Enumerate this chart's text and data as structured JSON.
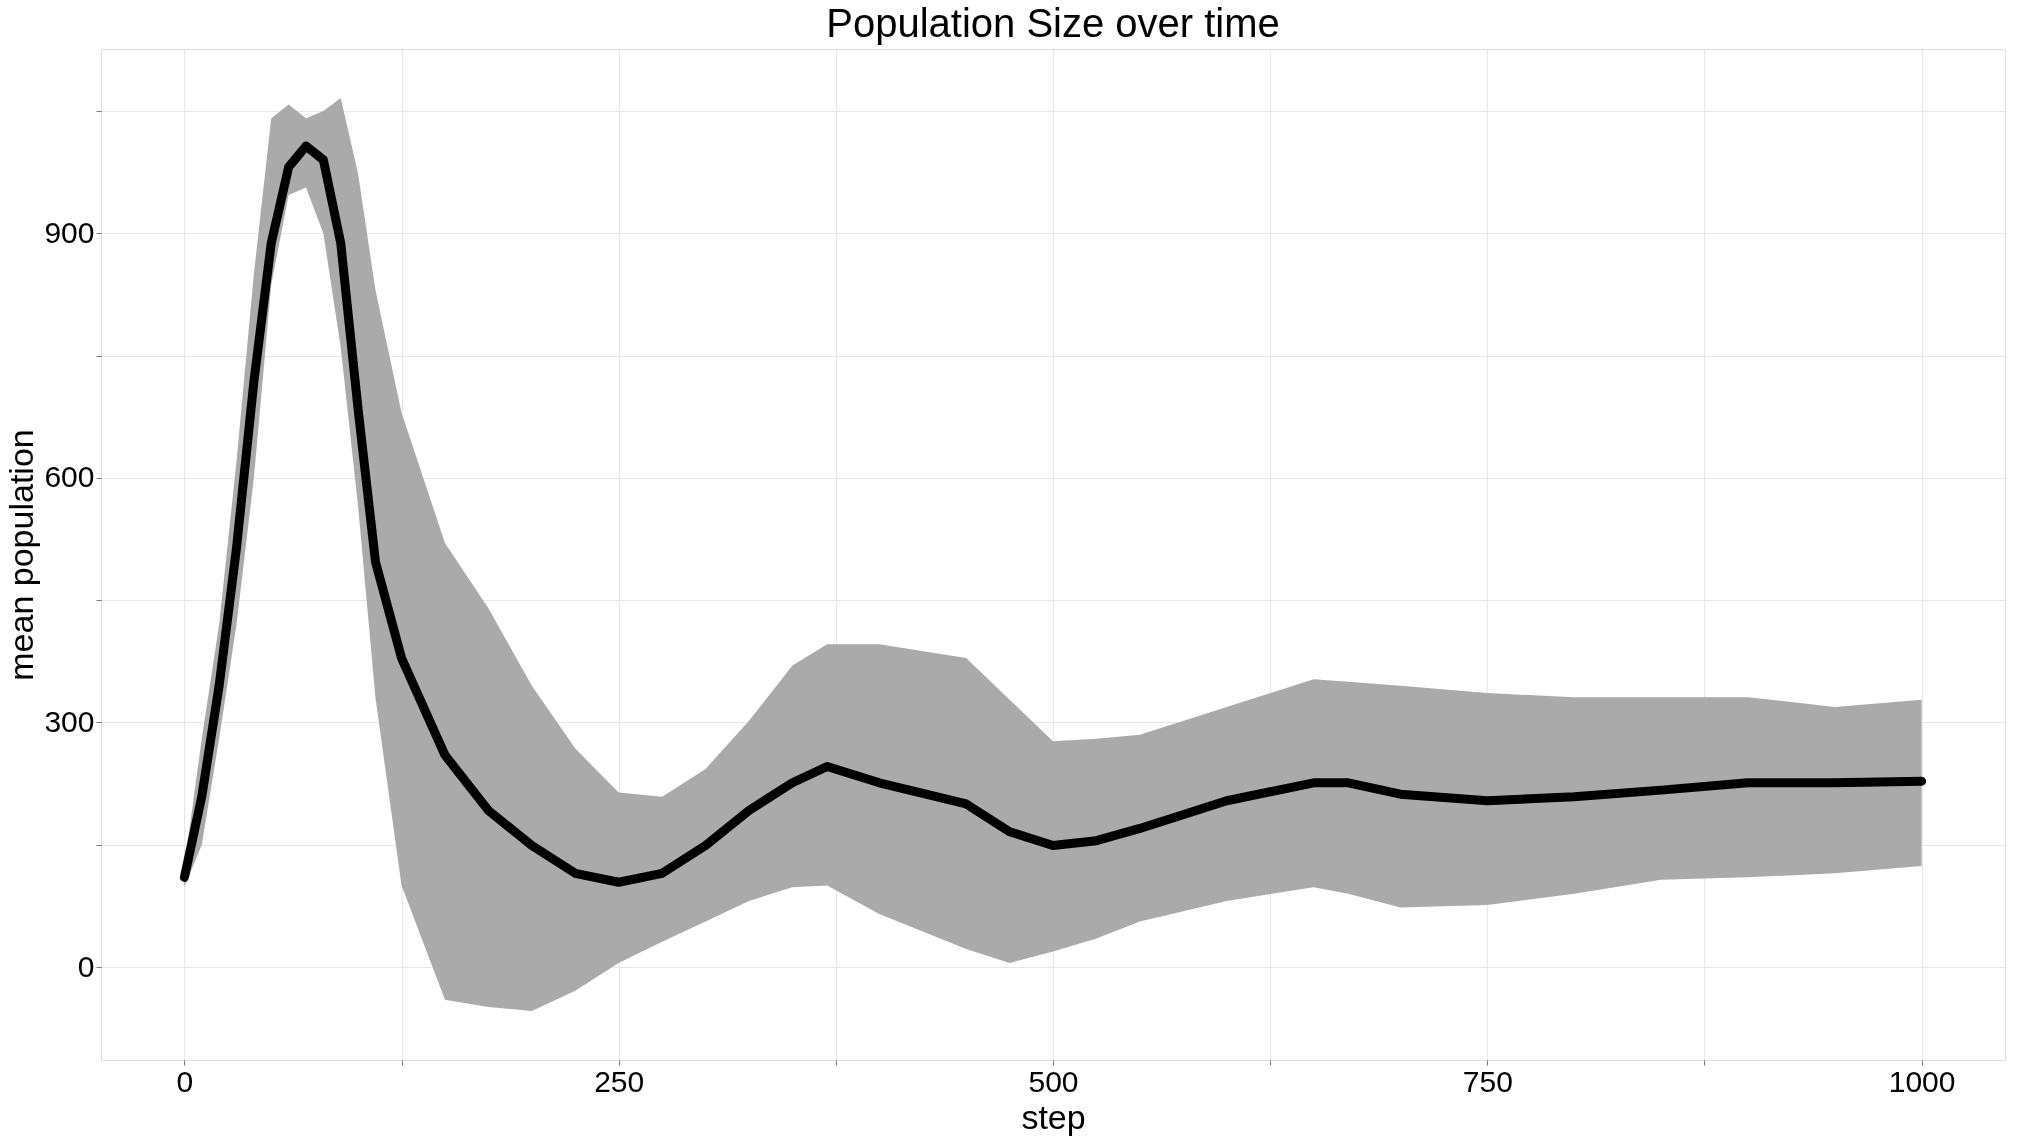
{
  "chart_data": {
    "type": "line",
    "title": "Population Size over time",
    "xlabel": "step",
    "ylabel": "mean population",
    "x": [
      0,
      10,
      20,
      30,
      40,
      50,
      60,
      70,
      80,
      90,
      100,
      110,
      125,
      150,
      175,
      200,
      225,
      250,
      275,
      300,
      325,
      350,
      370,
      400,
      450,
      475,
      500,
      525,
      550,
      600,
      650,
      670,
      700,
      750,
      800,
      850,
      900,
      950,
      1000
    ],
    "series": [
      {
        "color": "#000000",
        "values": [
          110,
          209,
          345,
          514,
          718,
          888,
          981,
          1007,
          990,
          888,
          684,
          497,
          379,
          260,
          192,
          149,
          115,
          104,
          115,
          149,
          192,
          226,
          246,
          226,
          200,
          166,
          149,
          155,
          170,
          204,
          226,
          226,
          212,
          204,
          209,
          217,
          226,
          226,
          228
        ],
        "upper": [
          124,
          280,
          420,
          620,
          850,
          1041,
          1058,
          1041,
          1050,
          1066,
          973,
          830,
          680,
          520,
          440,
          345,
          268,
          214,
          209,
          243,
          302,
          370,
          396,
          396,
          379,
          328,
          277,
          280,
          285,
          319,
          353,
          350,
          345,
          336,
          331,
          331,
          331,
          319,
          328
        ],
        "lower": [
          98,
          150,
          280,
          420,
          600,
          837,
          947,
          956,
          900,
          760,
          565,
          330,
          100,
          -40,
          -49,
          -54,
          -29,
          5,
          31,
          56,
          81,
          98,
          100,
          65,
          22,
          5,
          19,
          35,
          56,
          81,
          98,
          90,
          73,
          76,
          90,
          107,
          110,
          115,
          124
        ]
      }
    ],
    "xlim": [
      -48,
      1048
    ],
    "ylim": [
      -114,
      1126
    ],
    "xticks": [
      0,
      {
        "value": 125,
        "label": null
      },
      250,
      {
        "value": 375,
        "label": null
      },
      500,
      {
        "value": 625,
        "label": null
      },
      750,
      {
        "value": 875,
        "label": null
      },
      1000
    ],
    "yticks": [
      0,
      {
        "value": 150,
        "label": null
      },
      300,
      {
        "value": 450,
        "label": null
      },
      600,
      {
        "value": 750,
        "label": null
      },
      900,
      {
        "value": 1050,
        "label": null
      }
    ],
    "grid": true,
    "line_style": "solid",
    "marker": "none"
  }
}
